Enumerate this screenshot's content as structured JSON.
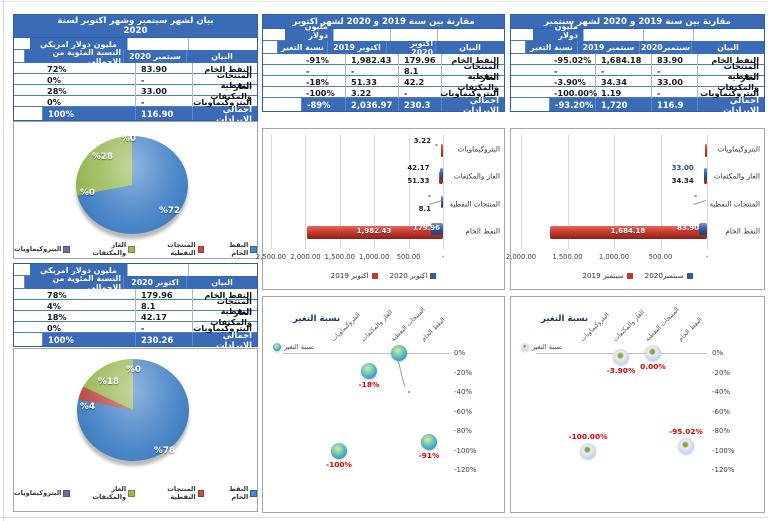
{
  "unit_label": "مليون دولار امريكي",
  "colors": {
    "table_blue": "#3a6bb7",
    "series_2019_red": "#c0392b",
    "series_2020_blue": "#34599e",
    "pie": {
      "oil": "#4a86c8",
      "products": "#c0504d",
      "gas": "#9bbb59",
      "petchem": "#8064a2"
    },
    "change_label_red": "#e00000"
  },
  "categories_order_tables": [
    "النفط الخام",
    "المنتجات النفطية",
    "الغاز والمكثفات",
    "البتروكيماويات"
  ],
  "tables": {
    "sep2020": {
      "title": "بيان لشهر سبتمبر وشهر اكتوبر لسنة 2020",
      "unit": "مليون دولار امريكي",
      "headers": [
        "البيان",
        "سبتمبر 2020",
        "النسبة المئوية من الاجمالي"
      ],
      "rows": [
        [
          "النفط الخام",
          "83.90",
          "72%"
        ],
        [
          "المنتجات النفطية",
          "-",
          "0%"
        ],
        [
          "الغاز والمكثفات",
          "33.00",
          "28%"
        ],
        [
          "البتروكيماويات",
          "-",
          "0%"
        ]
      ],
      "total": [
        "اجمالي الايرادات",
        "116.90",
        "100%"
      ]
    },
    "oct2020": {
      "unit": "مليون دولار امريكي",
      "headers": [
        "البيان",
        "اكتوبر 2020",
        "النسبة المئوية من الاجمالي"
      ],
      "rows": [
        [
          "النفط الخام",
          "179.96",
          "78%"
        ],
        [
          "المنتجات النفطية",
          "8.1",
          "4%"
        ],
        [
          "الغاز والمكثفات",
          "42.17",
          "18%"
        ],
        [
          "البتروكيماويات",
          "-",
          "0%"
        ]
      ],
      "total": [
        "اجمالي الايرادات",
        "230.26",
        "100%"
      ]
    },
    "octCompare": {
      "title": "مقارنة بين سنة 2019 و 2020 لشهر اكتوبر",
      "unit": "مليون دولار امريكي",
      "headers": [
        "البيان",
        "اكتوبر 2020",
        "اكتوبر 2019",
        "نسبة التغير"
      ],
      "rows": [
        [
          "النفط الخام",
          "179.96",
          "1,982.43",
          "-91%"
        ],
        [
          "المنتجات النفطية",
          "8.1",
          "-",
          "-"
        ],
        [
          "الغاز والمكثفات",
          "42.2",
          "51.33",
          "-18%"
        ],
        [
          "البتروكيماويات",
          "-",
          "3.22",
          "-100%"
        ]
      ],
      "total": [
        "اجمالي الايرادات",
        "230.3",
        "2,036.97",
        "-89%"
      ]
    },
    "sepCompare": {
      "title": "مقارنة بين سنة 2019 و 2020 لشهر سبتمبر",
      "unit": "مليون دولار امريكي",
      "headers": [
        "البيان",
        "سبتمبر2020",
        "سبتمبر 2019",
        "نسبة التغير"
      ],
      "rows": [
        [
          "النفط الخام",
          "83.90",
          "1,684.18",
          "-95.02%"
        ],
        [
          "المنتجات النفطية",
          "-",
          "-",
          "-"
        ],
        [
          "الغاز والمكثفات",
          "33.00",
          "34.34",
          "-3.90%"
        ],
        [
          "البتروكيماويات",
          "-",
          "1.19",
          "-100.00%"
        ]
      ],
      "total": [
        "اجمالي الايرادات",
        "116.9",
        "1,720",
        "-93.20%"
      ]
    }
  },
  "chart_data": [
    {
      "id": "pie-september",
      "type": "pie",
      "title": "",
      "categories": [
        "النفط الخام",
        "المنتجات النفطية",
        "الغاز والمكثفات",
        "البتروكيماويات"
      ],
      "values": [
        72,
        0,
        28,
        0
      ],
      "slice_labels": [
        "%72",
        "%0",
        "%28",
        "%0"
      ],
      "colors": [
        "#4a86c8",
        "#c0504d",
        "#9bbb59",
        "#8064a2"
      ],
      "legend_position": "bottom"
    },
    {
      "id": "pie-october",
      "type": "pie",
      "title": "",
      "categories": [
        "النفط الخام",
        "المنتجات النفطية",
        "الغاز والمكثفات",
        "البتروكيماويات"
      ],
      "values": [
        78,
        4,
        18,
        0
      ],
      "slice_labels": [
        "%78",
        "%4",
        "%18",
        "%0"
      ],
      "colors": [
        "#4a86c8",
        "#c0504d",
        "#9bbb59",
        "#8064a2"
      ],
      "legend_position": "bottom"
    },
    {
      "id": "bar-october",
      "type": "bar",
      "orientation": "horizontal-rtl",
      "categories": [
        "البتروكيماويات",
        "الغاز والمكثفات",
        "المنتجات النفطية",
        "النفط الخام"
      ],
      "series": [
        {
          "name": "اكتوبر 2020",
          "color": "#34599e",
          "values": [
            null,
            42.17,
            8.1,
            179.96
          ]
        },
        {
          "name": "اكتوبر 2019",
          "color": "#c0392b",
          "values": [
            3.22,
            51.33,
            null,
            1982.43
          ]
        }
      ],
      "labels_2020": [
        {
          "text": "-",
          "mode": "axis"
        },
        {
          "text": "42.17",
          "mode": "out"
        },
        {
          "text": "8.1",
          "mode": "out-low"
        },
        {
          "text": "179.96",
          "mode": "in"
        }
      ],
      "labels_2019": [
        {
          "text": "3.22",
          "mode": "out"
        },
        {
          "text": "51.33",
          "mode": "out-low"
        },
        {
          "text": "-",
          "mode": "out"
        },
        {
          "text": "1,982.43",
          "mode": "in"
        }
      ],
      "xticks": [
        "2,500.00",
        "2,000.00",
        "1,500.00",
        "1,000.00",
        "500.00",
        "-"
      ],
      "xmax": 2500,
      "grid": true,
      "legend_position": "bottom"
    },
    {
      "id": "bar-september",
      "type": "bar",
      "orientation": "horizontal-rtl",
      "categories": [
        "البتروكيماويات",
        "الغاز والمكثفات",
        "المنتجات النفطية",
        "النفط الخام"
      ],
      "series": [
        {
          "name": "سبتمبر2020",
          "color": "#34599e",
          "values": [
            null,
            33.0,
            null,
            83.9
          ]
        },
        {
          "name": "سبتمبر 2019",
          "color": "#c0392b",
          "values": [
            1.19,
            34.34,
            null,
            1684.18
          ]
        }
      ],
      "labels_2020": [
        {
          "text": "",
          "mode": "none"
        },
        {
          "text": "33.00",
          "mode": "out",
          "color": "#1f4e96"
        },
        {
          "text": "-",
          "mode": "out"
        },
        {
          "text": "83.90",
          "mode": "in"
        }
      ],
      "labels_2019": [
        {
          "text": "",
          "mode": "none"
        },
        {
          "text": "34.34",
          "mode": "out-low"
        },
        {
          "text": "",
          "mode": "none"
        },
        {
          "text": "1,684.18",
          "mode": "in"
        }
      ],
      "xticks": [
        "2,000.00",
        "1,500.00",
        "1,000.00",
        "500.00",
        "-"
      ],
      "xmax": 2000,
      "grid": true,
      "legend_position": "bottom"
    },
    {
      "id": "scatter-october",
      "type": "scatter",
      "title": "نسبة التغير",
      "legend": "نسبة التغير",
      "categories": [
        "البتروكيماويات",
        "الغاز والمكثفات",
        "المنتجات النفطية",
        "النفط الخام"
      ],
      "values": [
        -100,
        -18,
        0,
        -91
      ],
      "point_labels": [
        "-100%",
        "-18%",
        "-",
        "-91%"
      ],
      "label_positions": [
        "below",
        "below",
        "leader",
        "below"
      ],
      "yticks": [
        "0%",
        "-20%",
        "-40%",
        "-60%",
        "-80%",
        "-100%",
        "-120%"
      ],
      "ylim": [
        0,
        -120
      ],
      "bubble_style": "teal"
    },
    {
      "id": "scatter-september",
      "type": "scatter",
      "title": "نسبة التغير",
      "legend": "نسبة التغير",
      "categories": [
        "البتروكيماويات",
        "الغاز والمكثفات",
        "المنتجات النفطية",
        "النفط الخام"
      ],
      "values": [
        -100,
        -3.9,
        0,
        -95.02
      ],
      "point_labels": [
        "-100.00%",
        "-3.90%",
        "0.00%",
        "-95.02%"
      ],
      "label_positions": [
        "above",
        "below",
        "below",
        "above"
      ],
      "yticks": [
        "0%",
        "-20%",
        "-40%",
        "-60%",
        "-80%",
        "-100%",
        "-120%"
      ],
      "ylim": [
        0,
        -120
      ],
      "bubble_style": "pale"
    }
  ],
  "pie_legend_items": [
    "النفط الخام",
    "المنتجات النفطية",
    "الغاز والمكثفات",
    "البتروكيماويات"
  ]
}
